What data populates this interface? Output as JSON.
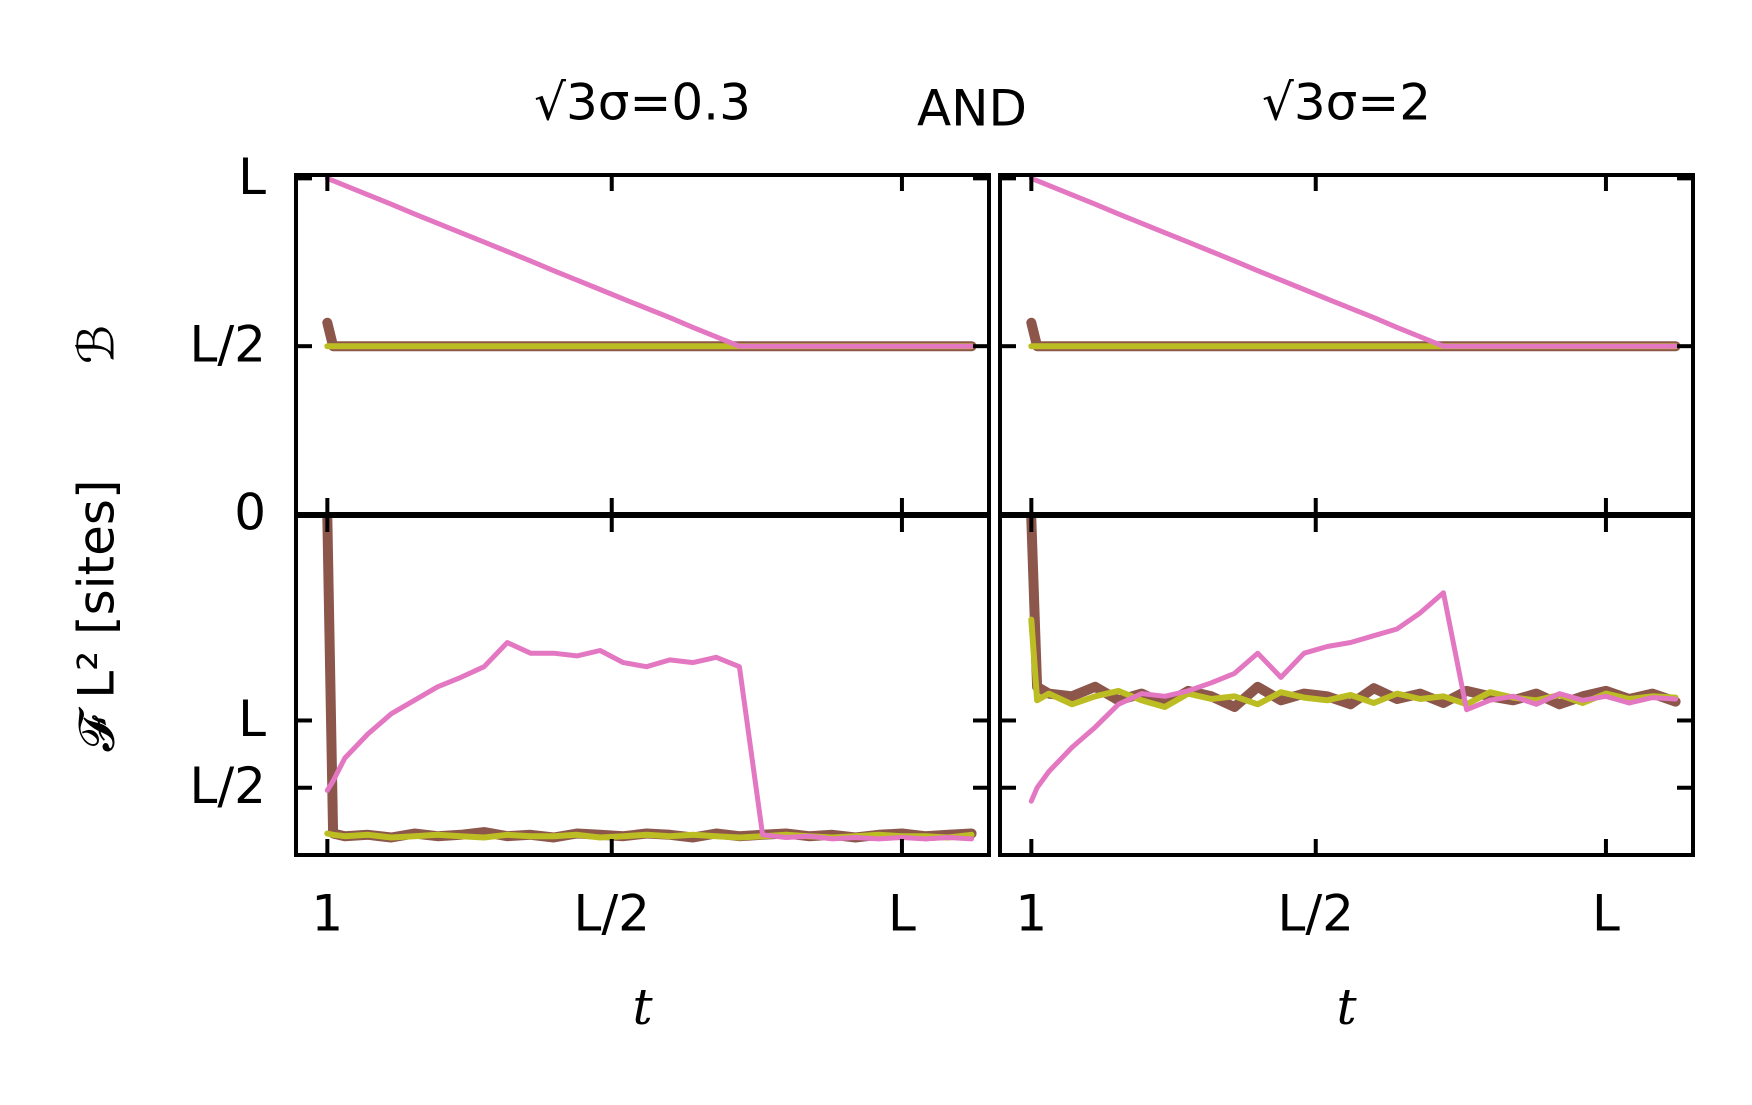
{
  "figure_text": "AND",
  "chart_data": [
    {
      "type": "line",
      "title": "√3σ=0.3",
      "ylabel": "ℬ",
      "xlim": [
        -4.4,
        115
      ],
      "ylim": [
        0,
        101
      ],
      "xticks": [
        1,
        50,
        100
      ],
      "yticks": [
        {
          "value": 0,
          "label": "0"
        },
        {
          "value": 50,
          "label": "L/2"
        },
        {
          "value": 100,
          "label": "L"
        }
      ],
      "x": [
        1,
        2,
        4,
        8,
        12,
        16,
        20,
        24,
        28,
        32,
        36,
        40,
        44,
        48,
        52,
        56,
        60,
        64,
        68,
        72,
        76,
        80,
        84,
        88,
        92,
        96,
        100,
        104,
        108,
        112
      ],
      "series": [
        {
          "color": "#8c564b",
          "values": [
            57,
            50,
            50,
            50,
            50,
            50,
            50,
            50,
            50,
            50,
            50,
            50,
            50,
            50,
            50,
            50,
            50,
            50,
            50,
            50,
            50,
            50,
            50,
            50,
            50,
            50,
            50,
            50,
            50,
            50
          ]
        },
        {
          "color": "#bcbd22",
          "values": [
            50,
            50,
            50,
            50,
            50,
            50,
            50,
            50,
            50,
            50,
            50,
            50,
            50,
            50,
            50,
            50,
            50,
            50,
            50,
            50,
            50,
            50,
            50,
            50,
            50,
            50,
            50,
            50,
            50,
            50
          ]
        },
        {
          "color": "#e377c2",
          "values": [
            100,
            99.3,
            97.9,
            95.1,
            92.3,
            89.4,
            86.6,
            83.8,
            81,
            78.2,
            75.4,
            72.5,
            69.7,
            66.9,
            64.1,
            61.3,
            58.5,
            55.6,
            52.8,
            50,
            50,
            50,
            50,
            50,
            50,
            50,
            50,
            50,
            50,
            50
          ]
        }
      ]
    },
    {
      "type": "line",
      "title": "√3σ=2",
      "xlim": [
        -4.4,
        115
      ],
      "ylim": [
        0,
        101
      ],
      "xticks": [
        1,
        50,
        100
      ],
      "yticks": [
        0,
        50,
        100
      ],
      "x": [
        1,
        2,
        4,
        8,
        12,
        16,
        20,
        24,
        28,
        32,
        36,
        40,
        44,
        48,
        52,
        56,
        60,
        64,
        68,
        72,
        76,
        80,
        84,
        88,
        92,
        96,
        100,
        104,
        108,
        112
      ],
      "series": [
        {
          "color": "#8c564b",
          "values": [
            57,
            50,
            50,
            50,
            50,
            50,
            50,
            50,
            50,
            50,
            50,
            50,
            50,
            50,
            50,
            50,
            50,
            50,
            50,
            50,
            50,
            50,
            50,
            50,
            50,
            50,
            50,
            50,
            50,
            50
          ]
        },
        {
          "color": "#bcbd22",
          "values": [
            50,
            50,
            50,
            50,
            50,
            50,
            50,
            50,
            50,
            50,
            50,
            50,
            50,
            50,
            50,
            50,
            50,
            50,
            50,
            50,
            50,
            50,
            50,
            50,
            50,
            50,
            50,
            50,
            50,
            50
          ]
        },
        {
          "color": "#e377c2",
          "values": [
            100,
            99.3,
            97.9,
            95.1,
            92.3,
            89.4,
            86.6,
            83.8,
            81,
            78.2,
            75.4,
            72.5,
            69.7,
            66.9,
            64.1,
            61.3,
            58.5,
            55.6,
            52.8,
            50,
            50,
            50,
            50,
            50,
            50,
            50,
            50,
            50,
            50,
            50
          ]
        }
      ]
    },
    {
      "type": "line",
      "ylabel": "𝓕 L² [sites]",
      "xlabel": "t",
      "xlim": [
        -4.4,
        115
      ],
      "ylim": [
        0,
        252
      ],
      "xticks": [
        {
          "value": 1,
          "label": "1"
        },
        {
          "value": 50,
          "label": "L/2"
        },
        {
          "value": 100,
          "label": "L"
        }
      ],
      "yticks": [
        {
          "value": 50,
          "label": "L/2"
        },
        {
          "value": 100,
          "label": "L"
        }
      ],
      "x": [
        1,
        2,
        4,
        8,
        12,
        16,
        20,
        24,
        28,
        32,
        36,
        40,
        44,
        48,
        52,
        56,
        60,
        64,
        68,
        72,
        76,
        80,
        84,
        88,
        92,
        96,
        100,
        104,
        108,
        112
      ],
      "series": [
        {
          "color": "#8c564b",
          "values": [
            252,
            16,
            14,
            15,
            13,
            16,
            14,
            15,
            17,
            14,
            15,
            13,
            16,
            15,
            14,
            16,
            15,
            13,
            16,
            14,
            15,
            16,
            14,
            15,
            13,
            15,
            16,
            14,
            15,
            16
          ]
        },
        {
          "color": "#bcbd22",
          "values": [
            16,
            15,
            14,
            15,
            13,
            14,
            15,
            14,
            13,
            15,
            14,
            14,
            15,
            13,
            14,
            15,
            14,
            15,
            14,
            13,
            14,
            15,
            14,
            13,
            14,
            15,
            14,
            14,
            13,
            15
          ]
        },
        {
          "color": "#e377c2",
          "values": [
            48,
            55,
            72,
            90,
            105,
            115,
            125,
            132,
            140,
            158,
            150,
            150,
            148,
            152,
            143,
            140,
            145,
            143,
            147,
            140,
            15,
            13,
            14,
            12,
            13,
            12,
            13,
            12,
            13,
            12
          ]
        }
      ]
    },
    {
      "type": "line",
      "xlabel": "t",
      "xlim": [
        -4.4,
        115
      ],
      "ylim": [
        0,
        252
      ],
      "xticks": [
        {
          "value": 1,
          "label": "1"
        },
        {
          "value": 50,
          "label": "L/2"
        },
        {
          "value": 100,
          "label": "L"
        }
      ],
      "yticks": [
        50,
        100
      ],
      "ytick_labels": false,
      "x": [
        1,
        2,
        4,
        8,
        12,
        16,
        20,
        24,
        28,
        32,
        36,
        40,
        44,
        48,
        52,
        56,
        60,
        64,
        68,
        72,
        76,
        80,
        84,
        88,
        92,
        96,
        100,
        104,
        108,
        112
      ],
      "series": [
        {
          "color": "#8c564b",
          "values": [
            250,
            125,
            120,
            118,
            125,
            115,
            120,
            112,
            122,
            118,
            110,
            125,
            115,
            120,
            118,
            112,
            124,
            116,
            120,
            113,
            122,
            118,
            115,
            120,
            112,
            118,
            122,
            116,
            120,
            114
          ]
        },
        {
          "color": "#bcbd22",
          "values": [
            175,
            115,
            120,
            112,
            118,
            122,
            115,
            110,
            120,
            116,
            118,
            112,
            121,
            117,
            115,
            119,
            113,
            120,
            116,
            118,
            112,
            121,
            117,
            115,
            119,
            113,
            120,
            116,
            118,
            117
          ]
        },
        {
          "color": "#e377c2",
          "values": [
            40,
            50,
            62,
            80,
            95,
            112,
            120,
            118,
            122,
            128,
            135,
            150,
            132,
            150,
            155,
            158,
            163,
            168,
            180,
            195,
            108,
            115,
            118,
            112,
            120,
            115,
            118,
            113,
            117,
            116
          ]
        }
      ]
    }
  ]
}
